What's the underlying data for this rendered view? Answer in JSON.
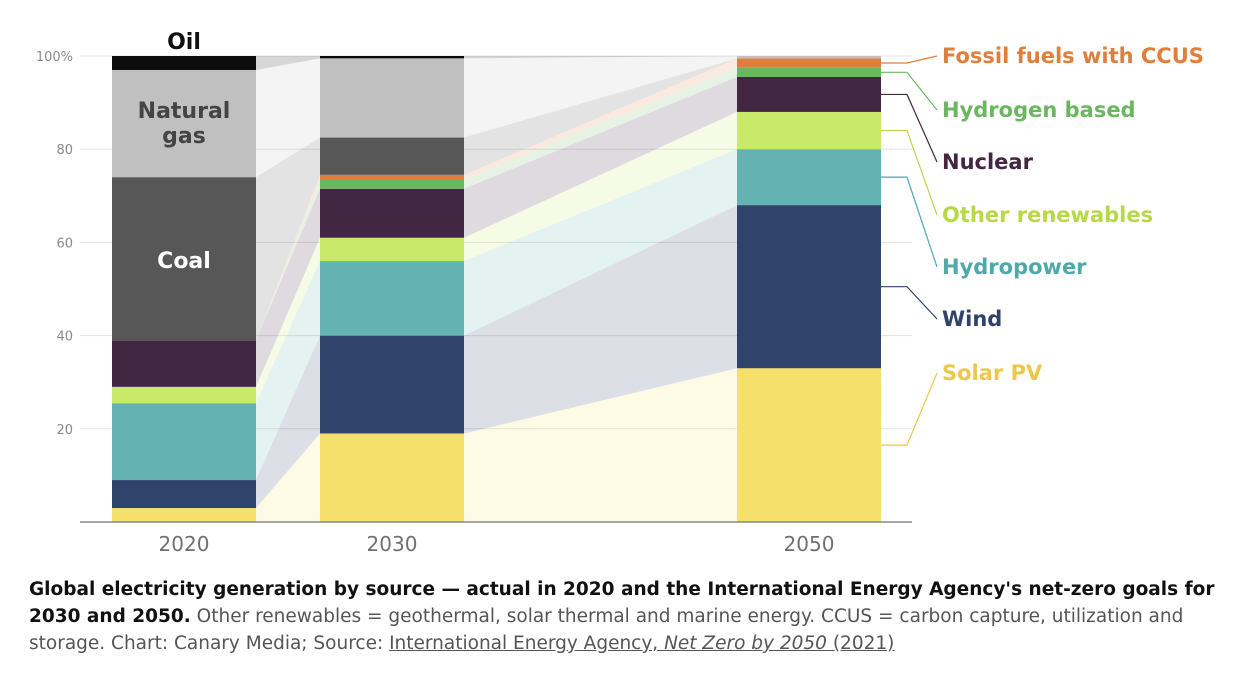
{
  "chart_data": {
    "type": "bar",
    "stacked": true,
    "categories": [
      "2020",
      "2030",
      "2050"
    ],
    "y_ticks": [
      "100%",
      "80",
      "60",
      "40",
      "20"
    ],
    "ylim": [
      0,
      100
    ],
    "series": [
      {
        "name": "Solar PV",
        "color": "#f4e06a",
        "values": [
          3,
          19,
          33
        ]
      },
      {
        "name": "Wind",
        "color": "#2f436b",
        "values": [
          6,
          21,
          35
        ]
      },
      {
        "name": "Hydropower",
        "color": "#65b2b3",
        "values": [
          16.5,
          16,
          12
        ]
      },
      {
        "name": "Other renewables",
        "color": "#c9e96a",
        "values": [
          3.5,
          5,
          8
        ]
      },
      {
        "name": "Nuclear",
        "color": "#432642",
        "values": [
          10,
          10.5,
          7.5
        ]
      },
      {
        "name": "Hydrogen based",
        "color": "#6ab760",
        "values": [
          0,
          2,
          2
        ]
      },
      {
        "name": "Fossil fuels with CCUS",
        "color": "#e07f3c",
        "values": [
          0,
          1,
          2
        ]
      },
      {
        "name": "Coal",
        "color": "#575757",
        "values": [
          35,
          8,
          0
        ]
      },
      {
        "name": "Natural gas",
        "color": "#c0c0c0",
        "values": [
          23,
          17,
          0.5
        ]
      },
      {
        "name": "Oil",
        "color": "#0c0c0c",
        "values": [
          3,
          0.5,
          0
        ]
      }
    ],
    "legend_colors": {
      "Fossil fuels with CCUS": "#e07f3c",
      "Hydrogen based": "#6ab760",
      "Nuclear": "#432642",
      "Other renewables": "#b8d84a",
      "Hydropower": "#4fa9aa",
      "Wind": "#2f436b",
      "Solar PV": "#ecc84a"
    },
    "inline_labels": {
      "oil": "Oil",
      "gas_line1": "Natural",
      "gas_line2": "gas",
      "coal": "Coal"
    },
    "legend_placement": "right"
  },
  "caption": {
    "bold": "Global electricity generation by source — actual in 2020 and the International Energy Agency's net-zero goals for 2030 and 2050.",
    "text1": " Other renewables = geothermal, solar thermal and marine energy. CCUS = carbon capture, utilization and storage. Chart: Canary Media; Source: ",
    "link_part1": "International Energy Agency, ",
    "link_italic": "Net Zero by 2050",
    "link_part2": " (2021)"
  }
}
